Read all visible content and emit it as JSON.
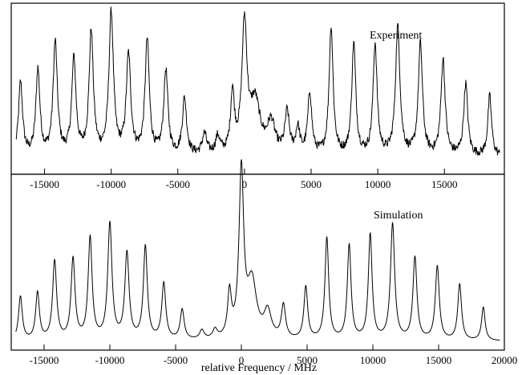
{
  "chart_data": [
    {
      "type": "line",
      "label": "Experiment",
      "xlabel": "",
      "ylabel": "",
      "xlim": [
        -17500,
        19500
      ],
      "ylim": [
        0,
        1
      ],
      "grid": false,
      "x_ticks": [
        -15000,
        -10000,
        -5000,
        0,
        5000,
        10000,
        15000
      ],
      "x_tick_labels": [
        "-15000",
        "-10000",
        "-5000",
        "0",
        "5000",
        "10000",
        "15000"
      ],
      "baseline": 0.1,
      "noise": 0.025,
      "peaks": [
        {
          "x": -16800,
          "y": 0.43,
          "w": 180
        },
        {
          "x": -15500,
          "y": 0.5,
          "w": 180
        },
        {
          "x": -14200,
          "y": 0.66,
          "w": 190
        },
        {
          "x": -12800,
          "y": 0.56,
          "w": 190
        },
        {
          "x": -11500,
          "y": 0.72,
          "w": 190
        },
        {
          "x": -10000,
          "y": 0.83,
          "w": 200
        },
        {
          "x": -8700,
          "y": 0.58,
          "w": 200
        },
        {
          "x": -7300,
          "y": 0.67,
          "w": 190
        },
        {
          "x": -5900,
          "y": 0.49,
          "w": 190
        },
        {
          "x": -4500,
          "y": 0.33,
          "w": 190
        },
        {
          "x": -3000,
          "y": 0.12,
          "w": 200
        },
        {
          "x": -2000,
          "y": 0.1,
          "w": 200
        },
        {
          "x": -900,
          "y": 0.35,
          "w": 170
        },
        {
          "x": 0,
          "y": 0.75,
          "w": 230
        },
        {
          "x": 800,
          "y": 0.3,
          "w": 450
        },
        {
          "x": 2000,
          "y": 0.18,
          "w": 350
        },
        {
          "x": 3200,
          "y": 0.24,
          "w": 200
        },
        {
          "x": 4000,
          "y": 0.15,
          "w": 180
        },
        {
          "x": 4900,
          "y": 0.36,
          "w": 180
        },
        {
          "x": 6500,
          "y": 0.75,
          "w": 180
        },
        {
          "x": 8200,
          "y": 0.65,
          "w": 180
        },
        {
          "x": 9800,
          "y": 0.65,
          "w": 180
        },
        {
          "x": 11500,
          "y": 0.75,
          "w": 200
        },
        {
          "x": 13200,
          "y": 0.65,
          "w": 190
        },
        {
          "x": 14900,
          "y": 0.56,
          "w": 190
        },
        {
          "x": 16600,
          "y": 0.42,
          "w": 180
        },
        {
          "x": 18400,
          "y": 0.35,
          "w": 170
        }
      ]
    },
    {
      "type": "line",
      "label": "Simulation",
      "xlabel": "relative Frequency / MHz",
      "ylabel": "",
      "xlim": [
        -17500,
        20000
      ],
      "ylim": [
        0,
        1
      ],
      "grid": false,
      "x_ticks": [
        -15000,
        -10000,
        -5000,
        0,
        5000,
        10000,
        15000,
        20000
      ],
      "x_tick_labels": [
        "-15000",
        "-10000",
        "-5000",
        "0",
        "5000",
        "10000",
        "15000",
        "20000"
      ],
      "baseline": 0.05,
      "noise": 0,
      "peaks": [
        {
          "x": -16800,
          "y": 0.25,
          "w": 170
        },
        {
          "x": -15500,
          "y": 0.27,
          "w": 170
        },
        {
          "x": -14200,
          "y": 0.45,
          "w": 180
        },
        {
          "x": -12800,
          "y": 0.46,
          "w": 180
        },
        {
          "x": -11500,
          "y": 0.58,
          "w": 180
        },
        {
          "x": -10000,
          "y": 0.66,
          "w": 190
        },
        {
          "x": -8700,
          "y": 0.49,
          "w": 190
        },
        {
          "x": -7300,
          "y": 0.53,
          "w": 180
        },
        {
          "x": -5900,
          "y": 0.32,
          "w": 180
        },
        {
          "x": -4500,
          "y": 0.17,
          "w": 180
        },
        {
          "x": -3000,
          "y": 0.05,
          "w": 200
        },
        {
          "x": -2000,
          "y": 0.05,
          "w": 200
        },
        {
          "x": -900,
          "y": 0.25,
          "w": 170
        },
        {
          "x": 0,
          "y": 0.95,
          "w": 210
        },
        {
          "x": 800,
          "y": 0.32,
          "w": 420
        },
        {
          "x": 2000,
          "y": 0.15,
          "w": 330
        },
        {
          "x": 3200,
          "y": 0.19,
          "w": 190
        },
        {
          "x": 4900,
          "y": 0.3,
          "w": 170
        },
        {
          "x": 6500,
          "y": 0.58,
          "w": 170
        },
        {
          "x": 8200,
          "y": 0.54,
          "w": 170
        },
        {
          "x": 9800,
          "y": 0.6,
          "w": 170
        },
        {
          "x": 11500,
          "y": 0.66,
          "w": 190
        },
        {
          "x": 13200,
          "y": 0.47,
          "w": 180
        },
        {
          "x": 14900,
          "y": 0.42,
          "w": 180
        },
        {
          "x": 16600,
          "y": 0.32,
          "w": 170
        },
        {
          "x": 18400,
          "y": 0.19,
          "w": 160
        }
      ]
    }
  ]
}
